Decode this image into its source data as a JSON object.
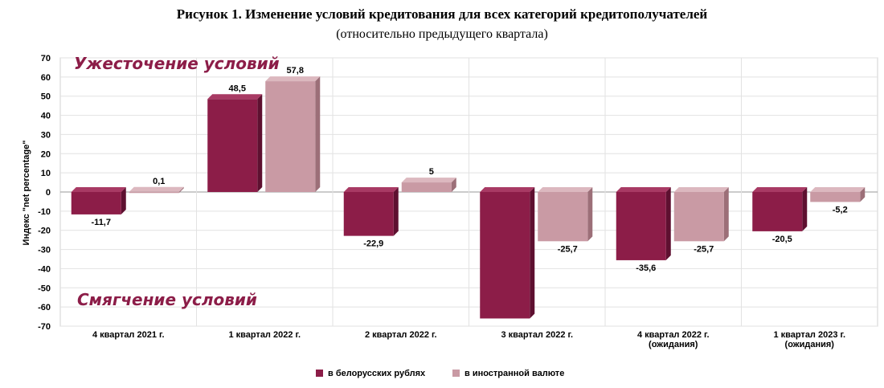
{
  "chart_data": {
    "type": "bar",
    "title": "Рисунок 1. Изменение условий кредитования для всех категорий кредитополучателей",
    "subtitle": "(относительно предыдущего квартала)",
    "ylabel": "Индекс \"net percentage\"",
    "ylim": [
      -70,
      70
    ],
    "yticks": [
      70,
      60,
      50,
      40,
      30,
      20,
      10,
      0,
      -10,
      -20,
      -30,
      -40,
      -50,
      -60,
      -70
    ],
    "grid": true,
    "categories": [
      [
        "4 квартал 2021 г."
      ],
      [
        "1 квартал 2022 г."
      ],
      [
        "2 квартал 2022 г."
      ],
      [
        "3 квартал 2022 г."
      ],
      [
        "4 квартал 2022 г.",
        "(ожидания)"
      ],
      [
        "1 квартал 2023 г.",
        "(ожидания)"
      ]
    ],
    "series": [
      {
        "name": "в белорусских рублях",
        "color": "#8c1d48",
        "values": [
          -11.7,
          48.5,
          -22.9,
          -66,
          -35.6,
          -20.5
        ],
        "labels": [
          "-11,7",
          "48,5",
          "-22,9",
          "",
          "-35,6",
          "-20,5"
        ]
      },
      {
        "name": "в иностранной валюте",
        "color": "#c99aa4",
        "values": [
          0.1,
          57.8,
          5,
          -25.7,
          -25.7,
          -5.2
        ],
        "labels": [
          "0,1",
          "57,8",
          "5",
          "-25,7",
          "-25,7",
          "-5,2"
        ]
      }
    ],
    "annotations": [
      "Ужесточение условий",
      "Смягчение условий"
    ],
    "legend_position": "bottom"
  }
}
